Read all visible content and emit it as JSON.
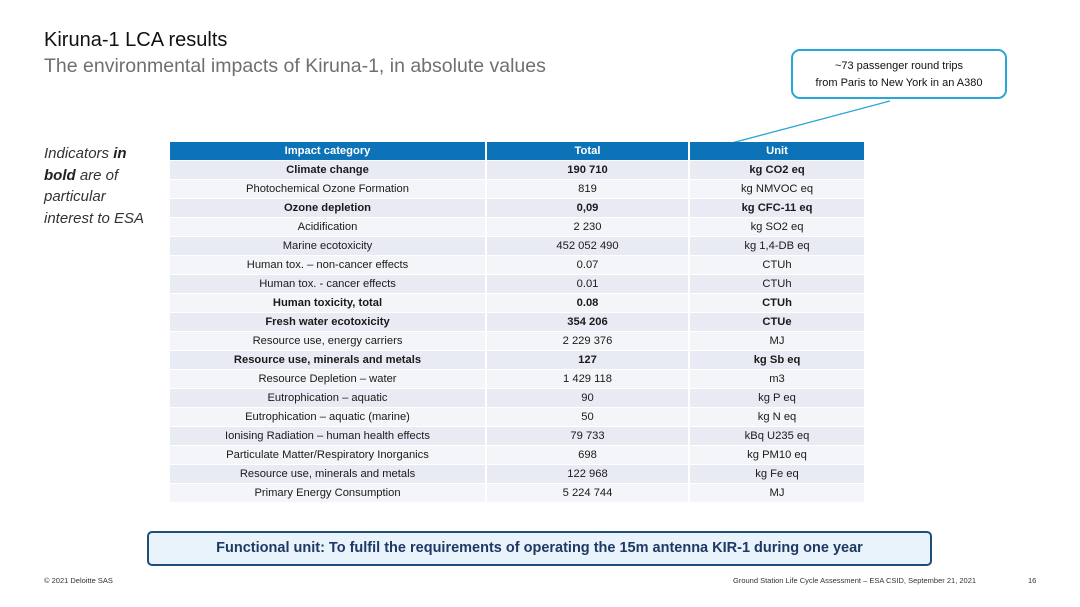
{
  "header": {
    "title": "Kiruna-1 LCA results",
    "subtitle": "The environmental impacts of Kiruna-1, in absolute values"
  },
  "callout": {
    "line1": "~73  passenger round trips",
    "line2": "from Paris to New York in an A380"
  },
  "side_note": {
    "part1": "Indicators ",
    "bold": "in bold",
    "part2": " are of particular interest to ESA"
  },
  "table": {
    "columns": [
      "Impact category",
      "Total",
      "Unit"
    ],
    "rows": [
      {
        "category": "Climate change",
        "total": "190 710",
        "unit": "kg CO2 eq",
        "bold": true
      },
      {
        "category": "Photochemical Ozone Formation",
        "total": "819",
        "unit": "kg NMVOC eq",
        "bold": false
      },
      {
        "category": "Ozone depletion",
        "total": "0,09",
        "unit": "kg CFC-11 eq",
        "bold": true
      },
      {
        "category": "Acidification",
        "total": "2 230",
        "unit": "kg SO2 eq",
        "bold": false
      },
      {
        "category": "Marine ecotoxicity",
        "total": "452 052 490",
        "unit": "kg 1,4-DB eq",
        "bold": false
      },
      {
        "category": "Human tox. – non-cancer effects",
        "total": "0.07",
        "unit": "CTUh",
        "bold": false
      },
      {
        "category": "Human tox. - cancer effects",
        "total": "0.01",
        "unit": "CTUh",
        "bold": false
      },
      {
        "category": "Human toxicity, total",
        "total": "0.08",
        "unit": "CTUh",
        "bold": true
      },
      {
        "category": "Fresh water ecotoxicity",
        "total": "354 206",
        "unit": "CTUe",
        "bold": true
      },
      {
        "category": "Resource use, energy carriers",
        "total": "2 229 376",
        "unit": "MJ",
        "bold": false
      },
      {
        "category": "Resource use, minerals and metals",
        "total": "127",
        "unit": "kg Sb eq",
        "bold": true
      },
      {
        "category": "Resource Depletion – water",
        "total": "1 429 118",
        "unit": "m3",
        "bold": false
      },
      {
        "category": "Eutrophication – aquatic",
        "total": "90",
        "unit": "kg P eq",
        "bold": false
      },
      {
        "category": "Eutrophication – aquatic (marine)",
        "total": "50",
        "unit": "kg N eq",
        "bold": false
      },
      {
        "category": "Ionising Radiation – human health effects",
        "total": "79 733",
        "unit": "kBq U235 eq",
        "bold": false
      },
      {
        "category": "Particulate Matter/Respiratory Inorganics",
        "total": "698",
        "unit": "kg PM10 eq",
        "bold": false
      },
      {
        "category": "Resource use, minerals and metals",
        "total": "122 968",
        "unit": "kg Fe eq",
        "bold": false
      },
      {
        "category": "Primary Energy Consumption",
        "total": "5 224 744",
        "unit": "MJ",
        "bold": false
      }
    ]
  },
  "functional_unit": "Functional unit: To fulfil the requirements of operating the 15m antenna KIR-1 during one year",
  "footer": {
    "copyright": "© 2021 Deloitte SAS",
    "event": "Ground Station Life Cycle Assessment – ESA CSID, September 21, 2021",
    "page": "16"
  },
  "colors": {
    "header_blue": "#0c73b8",
    "callout_border": "#29a6d8",
    "arrow": "#29a6d8",
    "functional_unit_border": "#1f4e79"
  }
}
